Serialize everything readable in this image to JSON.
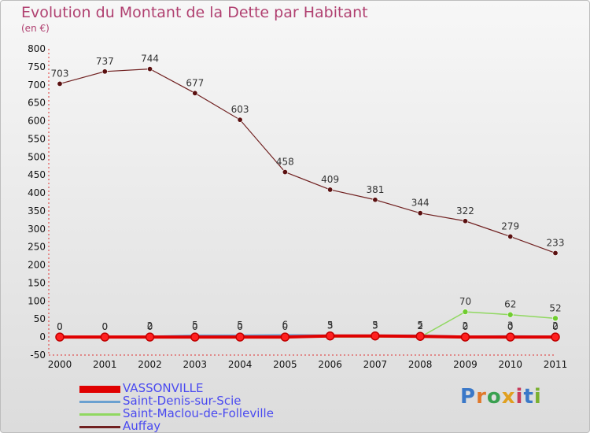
{
  "title": "Evolution du Montant de la Dette par Habitant",
  "unit": "(en €)",
  "logo": "Proxiti",
  "chart_data": {
    "type": "line",
    "title": "Evolution du Montant de la Dette par Habitant",
    "ylabel": "(en €)",
    "xlabel": "",
    "x": [
      "2000",
      "2001",
      "2002",
      "2003",
      "2004",
      "2005",
      "2006",
      "2007",
      "2008",
      "2009",
      "2010",
      "2011"
    ],
    "ylim": [
      -50,
      800
    ],
    "yticks": [
      -50,
      0,
      50,
      100,
      150,
      200,
      250,
      300,
      350,
      400,
      450,
      500,
      550,
      600,
      650,
      700,
      750,
      800
    ],
    "grid": false,
    "legend_position": "bottom-left",
    "series": [
      {
        "name": "VASSONVILLE",
        "color": "#e00000",
        "values": [
          0,
          0,
          0,
          0,
          0,
          0,
          3,
          3,
          2,
          0,
          0,
          0
        ],
        "labels": [
          "0",
          "0",
          "0",
          "0",
          "0",
          "0",
          "3",
          "3",
          "2",
          "0",
          "0",
          "0"
        ]
      },
      {
        "name": "Saint-Denis-sur-Scie",
        "color": "#6aa0d0",
        "values": [
          0,
          0,
          2,
          5,
          5,
          6,
          5,
          5,
          5,
          2,
          3,
          2
        ],
        "labels": [
          "0",
          "0",
          "2",
          "5",
          "5",
          "6",
          "5",
          "5",
          "5",
          "2",
          "3",
          "2"
        ]
      },
      {
        "name": "Saint-Maclou-de-Folleville",
        "color": "#90d860",
        "values": [
          0,
          0,
          0,
          0,
          0,
          0,
          0,
          0,
          0,
          70,
          62,
          52
        ],
        "labels": [
          "",
          "",
          "",
          "",
          "",
          "",
          "",
          "",
          "",
          "70",
          "62",
          "52"
        ]
      },
      {
        "name": "Auffay",
        "color": "#702020",
        "values": [
          703,
          737,
          744,
          677,
          603,
          458,
          409,
          381,
          344,
          322,
          279,
          233
        ],
        "labels": [
          "703",
          "737",
          "744",
          "677",
          "603",
          "458",
          "409",
          "381",
          "344",
          "322",
          "279",
          "233"
        ]
      }
    ]
  }
}
